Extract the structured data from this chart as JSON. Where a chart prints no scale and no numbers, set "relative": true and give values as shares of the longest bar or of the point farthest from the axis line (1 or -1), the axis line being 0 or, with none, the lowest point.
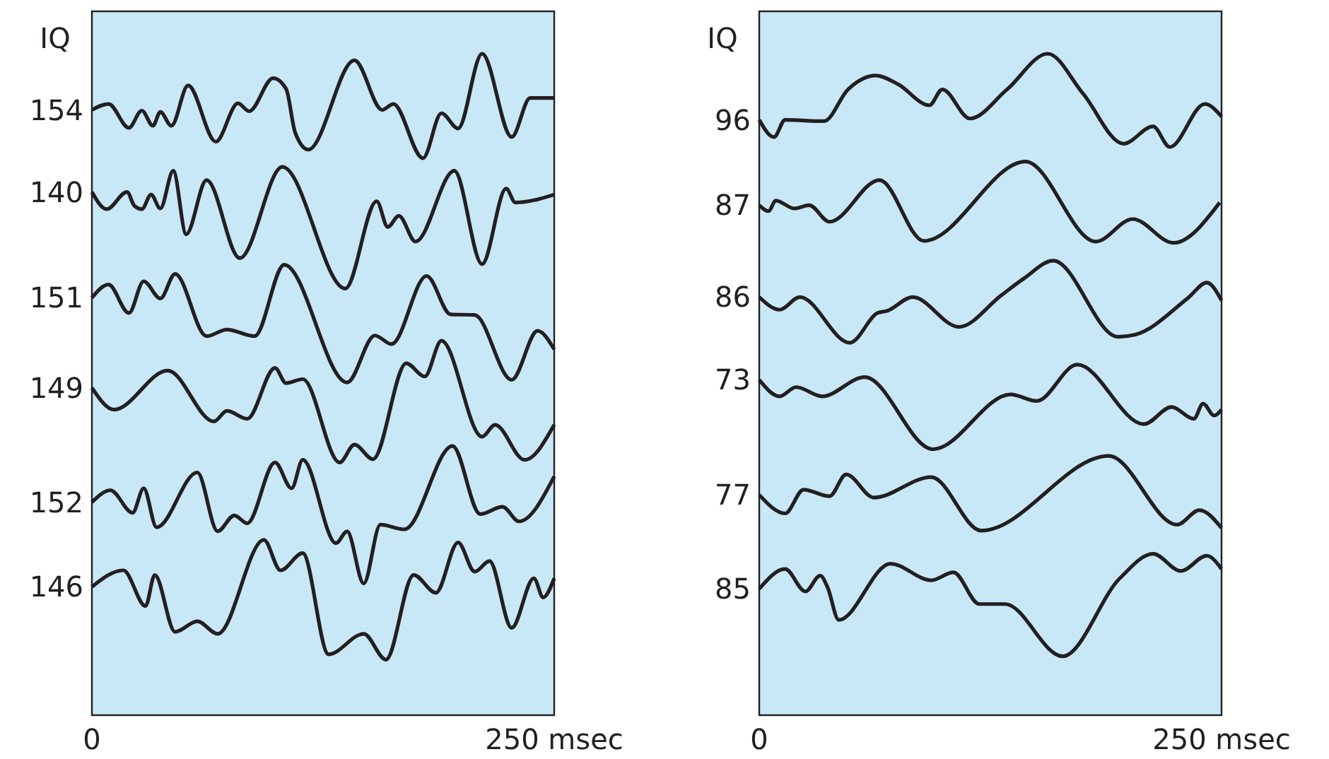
{
  "chart_data": [
    {
      "type": "line",
      "relative": true,
      "ylabel": "IQ",
      "xlim": [
        0,
        250
      ],
      "xticks": [
        0,
        {
          "value": 250,
          "label": "250 msec"
        }
      ],
      "legend": false,
      "marker": "none",
      "line_style": "solid",
      "grid": false,
      "series": [
        {
          "name": "154",
          "color": "#231f20",
          "x": [
            0,
            9,
            20,
            27,
            33,
            37,
            43,
            52,
            67,
            79,
            85,
            98,
            105,
            110,
            117,
            142,
            157,
            163,
            179,
            189,
            198,
            211,
            227,
            237,
            250
          ],
          "values": [
            0.915,
            0.924,
            0.888,
            0.914,
            0.891,
            0.912,
            0.891,
            0.952,
            0.867,
            0.925,
            0.913,
            0.963,
            0.947,
            0.88,
            0.855,
            0.99,
            0.915,
            0.924,
            0.842,
            0.91,
            0.887,
            1,
            0.874,
            0.933,
            0.933
          ]
        },
        {
          "name": "140",
          "color": "#231f20",
          "x": [
            0,
            8,
            19,
            23,
            27,
            32,
            37,
            44,
            51,
            62,
            80,
            103,
            137,
            154,
            160,
            166,
            175,
            196,
            211,
            224,
            229,
            250
          ],
          "values": [
            0.791,
            0.765,
            0.791,
            0.77,
            0.765,
            0.787,
            0.766,
            0.823,
            0.727,
            0.809,
            0.691,
            0.829,
            0.645,
            0.777,
            0.738,
            0.755,
            0.716,
            0.823,
            0.682,
            0.796,
            0.775,
            0.787
          ]
        },
        {
          "name": "151",
          "color": "#231f20",
          "x": [
            0,
            9,
            20,
            28,
            37,
            45,
            62,
            73,
            88,
            104,
            138,
            153,
            162,
            181,
            194,
            207,
            227,
            241,
            250
          ],
          "values": [
            0.631,
            0.651,
            0.608,
            0.656,
            0.63,
            0.667,
            0.573,
            0.583,
            0.573,
            0.681,
            0.503,
            0.574,
            0.561,
            0.664,
            0.606,
            0.605,
            0.507,
            0.581,
            0.553
          ]
        },
        {
          "name": "149",
          "color": "#231f20",
          "x": [
            0,
            12,
            41,
            66,
            73,
            84,
            99,
            105,
            114,
            134,
            142,
            152,
            170,
            180,
            189,
            211,
            218,
            234,
            250
          ],
          "values": [
            0.495,
            0.462,
            0.521,
            0.444,
            0.46,
            0.448,
            0.525,
            0.502,
            0.508,
            0.382,
            0.409,
            0.387,
            0.532,
            0.512,
            0.566,
            0.421,
            0.439,
            0.386,
            0.439
          ]
        },
        {
          "name": "152",
          "color": "#231f20",
          "x": [
            0,
            10,
            22,
            28,
            35,
            57,
            68,
            77,
            84,
            99,
            108,
            114,
            132,
            138,
            147,
            156,
            169,
            195,
            210,
            222,
            231,
            250
          ],
          "values": [
            0.322,
            0.34,
            0.306,
            0.343,
            0.284,
            0.367,
            0.278,
            0.302,
            0.29,
            0.382,
            0.343,
            0.386,
            0.26,
            0.278,
            0.199,
            0.288,
            0.281,
            0.407,
            0.304,
            0.315,
            0.293,
            0.361
          ]
        },
        {
          "name": "146",
          "color": "#231f20",
          "x": [
            0,
            17,
            29,
            34,
            45,
            57,
            68,
            93,
            102,
            114,
            128,
            147,
            159,
            174,
            186,
            198,
            207,
            215,
            227,
            239,
            244,
            250
          ],
          "values": [
            0.194,
            0.219,
            0.165,
            0.212,
            0.126,
            0.142,
            0.123,
            0.265,
            0.219,
            0.245,
            0.092,
            0.123,
            0.084,
            0.212,
            0.185,
            0.261,
            0.217,
            0.233,
            0.132,
            0.207,
            0.178,
            0.207
          ]
        }
      ]
    },
    {
      "type": "line",
      "relative": true,
      "ylabel": "IQ",
      "xlim": [
        0,
        250
      ],
      "xticks": [
        0,
        {
          "value": 250,
          "label": "250 msec"
        }
      ],
      "legend": false,
      "marker": "none",
      "line_style": "solid",
      "grid": false,
      "series": [
        {
          "name": "96",
          "color": "#231f20",
          "x": [
            0,
            8,
            14,
            35,
            48,
            63,
            75,
            92,
            99,
            114,
            134,
            156,
            175,
            197,
            213,
            222,
            241,
            250
          ],
          "values": [
            0.9,
            0.874,
            0.9,
            0.898,
            0.946,
            0.967,
            0.954,
            0.922,
            0.946,
            0.902,
            0.946,
            1,
            0.94,
            0.864,
            0.89,
            0.859,
            0.924,
            0.905
          ]
        },
        {
          "name": "87",
          "color": "#231f20",
          "x": [
            0,
            5,
            9,
            19,
            27,
            38,
            65,
            89,
            144,
            182,
            202,
            224,
            249
          ],
          "values": [
            0.771,
            0.762,
            0.778,
            0.766,
            0.771,
            0.746,
            0.809,
            0.717,
            0.837,
            0.716,
            0.75,
            0.714,
            0.775
          ]
        },
        {
          "name": "86",
          "color": "#231f20",
          "x": [
            0,
            11,
            22,
            49,
            64,
            69,
            83,
            108,
            131,
            143,
            159,
            194,
            203,
            232,
            242,
            250
          ],
          "values": [
            0.632,
            0.613,
            0.632,
            0.563,
            0.608,
            0.611,
            0.632,
            0.587,
            0.635,
            0.66,
            0.687,
            0.572,
            0.575,
            0.631,
            0.654,
            0.627
          ]
        },
        {
          "name": "73",
          "color": "#231f20",
          "x": [
            0,
            11,
            20,
            34,
            57,
            94,
            136,
            150,
            172,
            208,
            223,
            235,
            240,
            246,
            250
          ],
          "values": [
            0.507,
            0.482,
            0.496,
            0.482,
            0.511,
            0.402,
            0.485,
            0.475,
            0.53,
            0.44,
            0.466,
            0.448,
            0.471,
            0.453,
            0.462
          ]
        },
        {
          "name": "77",
          "color": "#231f20",
          "x": [
            0,
            14,
            24,
            38,
            47,
            62,
            93,
            120,
            189,
            226,
            238,
            250
          ],
          "values": [
            0.333,
            0.305,
            0.341,
            0.331,
            0.364,
            0.329,
            0.36,
            0.279,
            0.392,
            0.288,
            0.31,
            0.283
          ]
        },
        {
          "name": "85",
          "color": "#231f20",
          "x": [
            0,
            14,
            25,
            33,
            37,
            43,
            71,
            93,
            105,
            119,
            133,
            164,
            195,
            213,
            228,
            242,
            250
          ],
          "values": [
            0.191,
            0.221,
            0.187,
            0.211,
            0.193,
            0.144,
            0.229,
            0.204,
            0.216,
            0.168,
            0.168,
            0.089,
            0.207,
            0.244,
            0.218,
            0.241,
            0.221
          ]
        }
      ]
    }
  ]
}
